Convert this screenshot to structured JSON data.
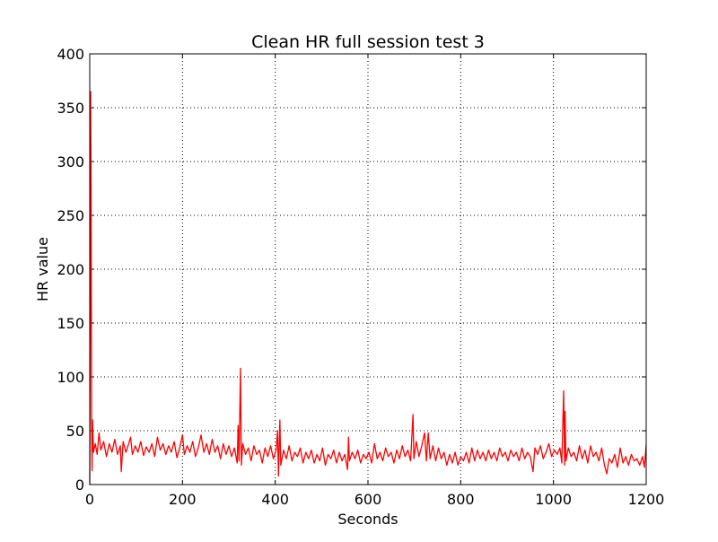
{
  "chart_data": {
    "type": "line",
    "title": "Clean HR full session test 3",
    "x_label": "Seconds",
    "y_label": "HR value",
    "x": [
      0,
      1,
      2,
      3,
      4,
      5,
      6,
      8,
      12,
      16,
      20,
      24,
      30,
      36,
      42,
      48,
      54,
      60,
      66,
      68,
      72,
      78,
      84,
      88,
      92,
      98,
      104,
      110,
      116,
      122,
      128,
      134,
      140,
      146,
      152,
      158,
      164,
      170,
      176,
      182,
      188,
      194,
      200,
      204,
      210,
      216,
      222,
      228,
      234,
      240,
      246,
      252,
      258,
      264,
      270,
      276,
      282,
      288,
      294,
      300,
      306,
      312,
      318,
      320,
      322,
      325,
      327,
      330,
      336,
      342,
      348,
      354,
      360,
      366,
      372,
      378,
      384,
      390,
      396,
      402,
      405,
      407,
      410,
      412,
      418,
      424,
      430,
      436,
      442,
      448,
      454,
      460,
      466,
      472,
      478,
      484,
      490,
      496,
      502,
      508,
      514,
      520,
      526,
      532,
      538,
      544,
      550,
      556,
      558,
      560,
      566,
      572,
      578,
      584,
      590,
      596,
      602,
      608,
      614,
      620,
      626,
      632,
      638,
      644,
      650,
      656,
      662,
      668,
      674,
      680,
      686,
      692,
      697,
      699,
      704,
      710,
      716,
      722,
      726,
      730,
      734,
      740,
      746,
      752,
      758,
      764,
      770,
      776,
      782,
      788,
      794,
      800,
      806,
      812,
      818,
      824,
      830,
      836,
      842,
      848,
      854,
      860,
      866,
      872,
      878,
      884,
      890,
      896,
      902,
      908,
      914,
      920,
      926,
      932,
      938,
      944,
      950,
      956,
      960,
      966,
      972,
      978,
      984,
      990,
      996,
      1002,
      1008,
      1014,
      1018,
      1022,
      1024,
      1025,
      1027,
      1032,
      1038,
      1044,
      1050,
      1056,
      1062,
      1068,
      1074,
      1080,
      1086,
      1092,
      1098,
      1104,
      1110,
      1115,
      1120,
      1126,
      1132,
      1138,
      1144,
      1150,
      1156,
      1162,
      1168,
      1174,
      1180,
      1186,
      1192,
      1196,
      1200
    ],
    "series": [
      {
        "name": "HR",
        "color": "#ff0000",
        "values": [
          0,
          150,
          365,
          268,
          60,
          13,
          60,
          30,
          38,
          28,
          48,
          32,
          40,
          26,
          38,
          30,
          42,
          28,
          36,
          12,
          40,
          30,
          38,
          44,
          28,
          36,
          30,
          40,
          27,
          35,
          30,
          38,
          26,
          44,
          32,
          38,
          28,
          36,
          30,
          40,
          25,
          34,
          46,
          28,
          36,
          30,
          40,
          26,
          34,
          46,
          30,
          38,
          28,
          42,
          30,
          36,
          24,
          38,
          28,
          36,
          26,
          34,
          20,
          55,
          22,
          108,
          18,
          38,
          28,
          34,
          22,
          36,
          28,
          32,
          20,
          34,
          26,
          36,
          24,
          32,
          50,
          8,
          60,
          18,
          32,
          24,
          36,
          22,
          30,
          26,
          34,
          20,
          30,
          24,
          32,
          20,
          28,
          22,
          34,
          18,
          28,
          24,
          32,
          20,
          30,
          22,
          28,
          14,
          44,
          22,
          30,
          24,
          32,
          20,
          28,
          24,
          30,
          20,
          38,
          24,
          30,
          22,
          34,
          26,
          30,
          20,
          32,
          24,
          36,
          26,
          32,
          22,
          65,
          24,
          40,
          26,
          36,
          48,
          22,
          48,
          24,
          36,
          22,
          34,
          24,
          30,
          18,
          28,
          20,
          30,
          18,
          26,
          22,
          30,
          20,
          34,
          22,
          32,
          24,
          30,
          22,
          32,
          24,
          30,
          22,
          34,
          26,
          30,
          22,
          32,
          26,
          30,
          22,
          34,
          24,
          30,
          26,
          12,
          34,
          28,
          36,
          24,
          30,
          38,
          26,
          32,
          28,
          34,
          20,
          87,
          18,
          68,
          22,
          34,
          26,
          30,
          22,
          36,
          24,
          32,
          20,
          36,
          26,
          30,
          22,
          34,
          18,
          10,
          24,
          20,
          28,
          16,
          34,
          20,
          26,
          18,
          28,
          22,
          24,
          18,
          26,
          16,
          37
        ]
      }
    ],
    "xlim": [
      0,
      1200
    ],
    "ylim": [
      0,
      400
    ],
    "xticks": [
      0,
      200,
      400,
      600,
      800,
      1000,
      1200
    ],
    "yticks": [
      0,
      50,
      100,
      150,
      200,
      250,
      300,
      350,
      400
    ],
    "grid": true
  }
}
